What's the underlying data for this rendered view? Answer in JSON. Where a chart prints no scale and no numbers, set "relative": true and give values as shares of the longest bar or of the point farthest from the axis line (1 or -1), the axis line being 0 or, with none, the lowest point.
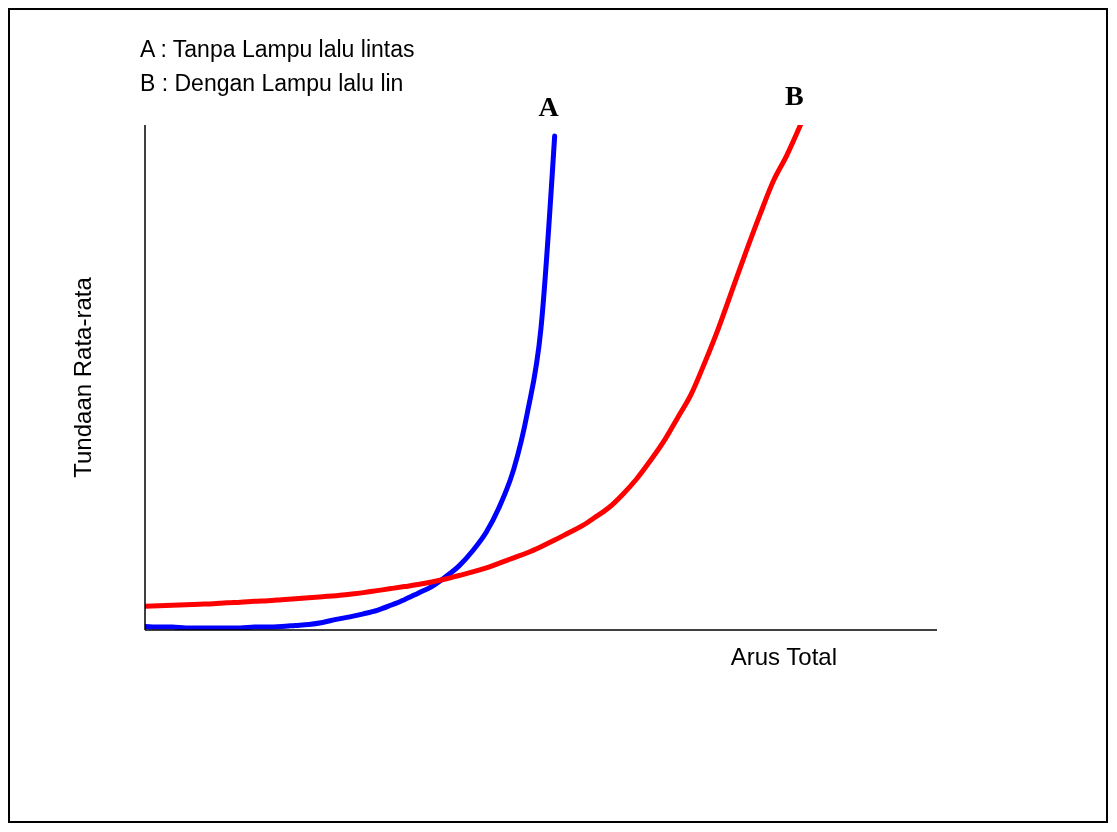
{
  "chart_data": {
    "type": "line",
    "relative": true,
    "xlabel": "Arus Total",
    "ylabel": "Tundaan Rata-rata",
    "annotations": [
      "A : Tanpa Lampu lalu lintas",
      "B : Dengan Lampu lalu lin"
    ],
    "grid": false,
    "legend": false,
    "marker": "none",
    "line_style": "solid",
    "categories": [
      null,
      null,
      null,
      null,
      null,
      null,
      null,
      null,
      null,
      null,
      null,
      null,
      null,
      null,
      null,
      null,
      null,
      null,
      null,
      null,
      null,
      null,
      null,
      null,
      null,
      null,
      null,
      null,
      null,
      null,
      null,
      null,
      null,
      null,
      null,
      null,
      null,
      null,
      null,
      null,
      null,
      null,
      null,
      null,
      null,
      null,
      null,
      null,
      null,
      null,
      null,
      null,
      null,
      null,
      null,
      null,
      null,
      null,
      null
    ],
    "series": [
      {
        "name": "A",
        "color": "#0000ff",
        "values": [
          0.007,
          0.006,
          0.006,
          0.004,
          0.004,
          0.004,
          0.004,
          0.004,
          0.006,
          0.006,
          0.007,
          0.009,
          0.011,
          0.015,
          0.021,
          0.026,
          0.032,
          0.039,
          0.049,
          0.06,
          0.073,
          0.086,
          0.105,
          0.127,
          0.157,
          0.194,
          0.247,
          0.318,
          0.43,
          0.598,
          0.978,
          null,
          null,
          null,
          null,
          null,
          null,
          null,
          null,
          null,
          null,
          null,
          null,
          null,
          null,
          null,
          null,
          null,
          null,
          null,
          null,
          null,
          null,
          null,
          null,
          null,
          null,
          null,
          null
        ]
      },
      {
        "name": "B",
        "color": "#ff0000",
        "values": [
          0.047,
          0.048,
          0.049,
          0.05,
          0.051,
          0.052,
          0.054,
          0.055,
          0.057,
          0.058,
          0.06,
          0.062,
          0.064,
          0.066,
          0.068,
          0.071,
          0.074,
          0.078,
          0.082,
          0.086,
          0.09,
          0.095,
          0.101,
          0.108,
          0.115,
          0.123,
          0.133,
          0.143,
          0.153,
          0.165,
          0.178,
          0.192,
          0.206,
          0.224,
          0.243,
          0.269,
          0.299,
          0.335,
          0.374,
          0.42,
          0.467,
          0.53,
          0.598,
          0.673,
          0.748,
          0.82,
          0.888,
          0.94,
          1,
          null,
          null,
          null,
          null,
          null,
          null,
          null,
          null,
          null,
          null
        ]
      }
    ]
  }
}
